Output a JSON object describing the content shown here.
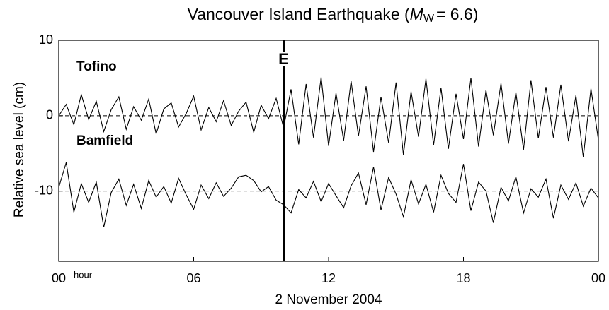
{
  "chart_data": {
    "type": "line",
    "title": [
      "Vancouver Island Earthquake (",
      "M",
      "W",
      "= 6.6)"
    ],
    "xlabel": "2 November 2004",
    "ylabel": "Relative sea level (cm)",
    "x_unit": "hour",
    "x": [
      0,
      0.33,
      0.67,
      1,
      1.33,
      1.67,
      2,
      2.33,
      2.67,
      3,
      3.33,
      3.67,
      4,
      4.33,
      4.67,
      5,
      5.33,
      5.67,
      6,
      6.33,
      6.67,
      7,
      7.33,
      7.67,
      8,
      8.33,
      8.67,
      9,
      9.33,
      9.67,
      10,
      10.33,
      10.67,
      11,
      11.33,
      11.67,
      12,
      12.33,
      12.67,
      13,
      13.33,
      13.67,
      14,
      14.33,
      14.67,
      15,
      15.33,
      15.67,
      16,
      16.33,
      16.67,
      17,
      17.33,
      17.67,
      18,
      18.33,
      18.67,
      19,
      19.33,
      19.67,
      20,
      20.33,
      20.67,
      21,
      21.33,
      21.67,
      22,
      22.33,
      22.67,
      23,
      23.33,
      23.67,
      24
    ],
    "series": [
      {
        "name": "Tofino",
        "color": "#000000",
        "values": [
          0,
          1.5,
          -1.2,
          2.8,
          -0.5,
          1.9,
          -2.1,
          0.8,
          2.5,
          -1.8,
          1.2,
          -0.6,
          2.2,
          -2.4,
          0.9,
          1.7,
          -1.5,
          0.3,
          2.6,
          -1.9,
          1.1,
          -0.8,
          2.0,
          -1.3,
          0.6,
          1.8,
          -2.2,
          1.4,
          -0.4,
          2.3,
          -1.6,
          3.5,
          -3.8,
          4.2,
          -2.9,
          5.1,
          -4.0,
          3.0,
          -3.3,
          4.6,
          -2.7,
          3.9,
          -4.8,
          2.5,
          -3.6,
          4.4,
          -5.2,
          3.2,
          -2.8,
          4.9,
          -3.9,
          3.7,
          -4.4,
          2.9,
          -3.1,
          5.0,
          -4.1,
          3.4,
          -2.6,
          4.3,
          -3.7,
          3.1,
          -4.5,
          4.7,
          -3.0,
          3.8,
          -2.9,
          4.1,
          -3.4,
          2.7,
          -5.5,
          3.6,
          -3.2
        ]
      },
      {
        "name": "Bamfield",
        "color": "#000000",
        "values": [
          -9.5,
          -6.2,
          -12.8,
          -9.0,
          -11.5,
          -8.8,
          -14.8,
          -10.2,
          -8.4,
          -11.9,
          -9.1,
          -12.3,
          -8.6,
          -10.8,
          -9.4,
          -11.6,
          -8.3,
          -10.5,
          -12.4,
          -9.2,
          -11.0,
          -8.9,
          -10.7,
          -9.6,
          -8.1,
          -7.9,
          -8.6,
          -10.1,
          -9.4,
          -11.2,
          -11.8,
          -12.9,
          -9.8,
          -10.9,
          -8.7,
          -11.4,
          -9.0,
          -10.6,
          -12.2,
          -9.3,
          -7.6,
          -11.8,
          -6.8,
          -12.5,
          -8.2,
          -10.4,
          -13.4,
          -8.5,
          -11.7,
          -9.1,
          -12.8,
          -7.9,
          -10.3,
          -11.5,
          -6.4,
          -12.6,
          -8.8,
          -10.0,
          -14.2,
          -9.5,
          -11.3,
          -8.1,
          -12.9,
          -9.7,
          -10.8,
          -8.4,
          -13.6,
          -9.2,
          -11.1,
          -8.9,
          -12.0,
          -9.6,
          -10.9
        ]
      }
    ],
    "reference_lines": [
      0,
      -10
    ],
    "events": [
      {
        "x": 10,
        "label": "E"
      }
    ],
    "xlim": [
      0,
      24
    ],
    "xticks": [
      {
        "value": 0,
        "label": "00"
      },
      {
        "value": 6,
        "label": "06"
      },
      12,
      18,
      {
        "value": 24,
        "label": "00"
      }
    ],
    "ylim": [
      -19.3,
      10
    ],
    "yticks": [
      -10,
      0,
      10
    ]
  }
}
